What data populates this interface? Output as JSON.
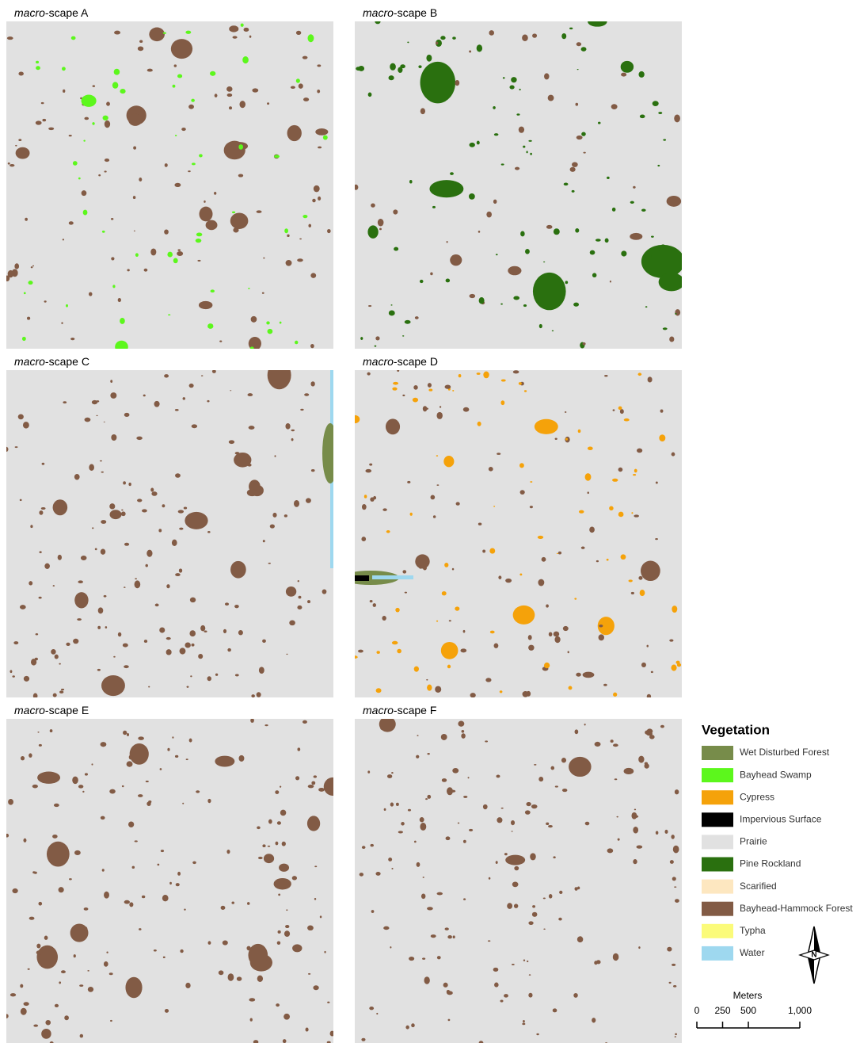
{
  "panels": [
    {
      "prefix": "macro",
      "suffix": "-scape A"
    },
    {
      "prefix": "macro",
      "suffix": "-scape B"
    },
    {
      "prefix": "macro",
      "suffix": "-scape C"
    },
    {
      "prefix": "macro",
      "suffix": "-scape D"
    },
    {
      "prefix": "macro",
      "suffix": "-scape E"
    },
    {
      "prefix": "macro",
      "suffix": "-scape F"
    }
  ],
  "legend": {
    "title": "Vegetation",
    "items": [
      {
        "label": "Wet Disturbed Forest",
        "color": "#778c4a"
      },
      {
        "label": "Bayhead Swamp",
        "color": "#5cf71c"
      },
      {
        "label": "Cypress",
        "color": "#f5a20a"
      },
      {
        "label": "Impervious Surface",
        "color": "#000000"
      },
      {
        "label": "Prairie",
        "color": "#e1e1e1"
      },
      {
        "label": "Pine Rockland",
        "color": "#2a700f"
      },
      {
        "label": "Scarified",
        "color": "#fde7c0"
      },
      {
        "label": "Bayhead-Hammock Forest",
        "color": "#825b45"
      },
      {
        "label": "Typha",
        "color": "#fbfb7a"
      },
      {
        "label": "Water",
        "color": "#9ed8ef"
      }
    ]
  },
  "scale_bar": {
    "title": "Meters",
    "ticks": [
      0,
      250,
      500,
      {
        "value": 1000,
        "label": "1,000"
      }
    ],
    "max": 1000
  }
}
